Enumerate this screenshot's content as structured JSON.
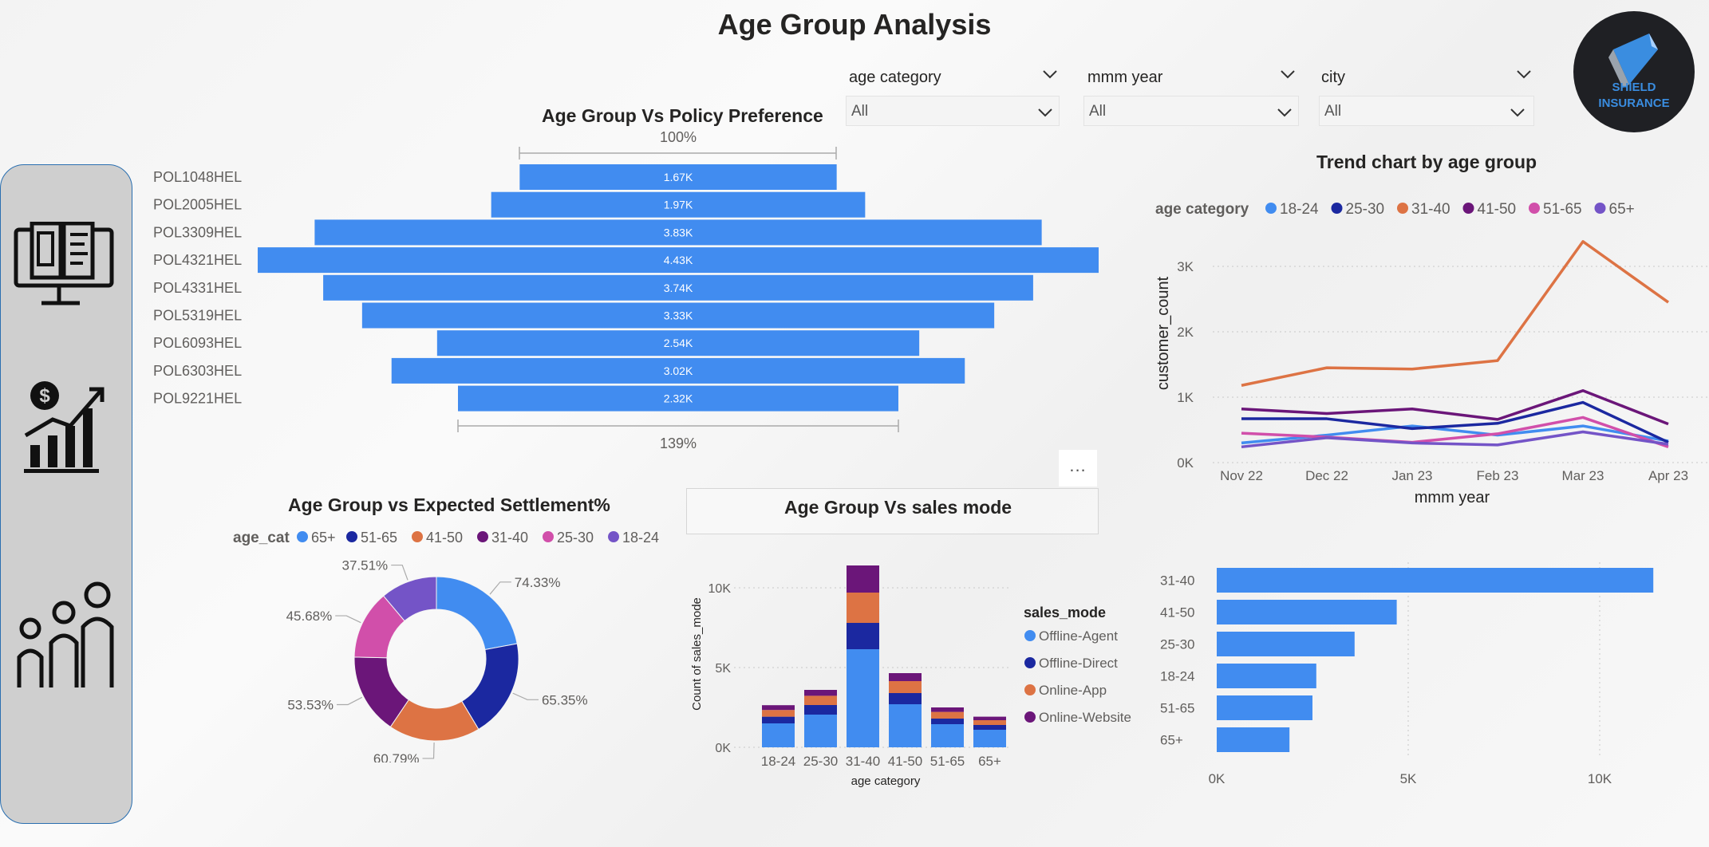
{
  "page": {
    "title": "Age Group Analysis"
  },
  "logo": {
    "line1": "SHIELD",
    "line2": "INSURANCE"
  },
  "sidebar": {
    "icons": [
      "computer-document-icon",
      "money-growth-chart-icon",
      "family-icon"
    ]
  },
  "slicers": [
    {
      "label": "age category",
      "value": "All"
    },
    {
      "label": "mmm year",
      "value": "All"
    },
    {
      "label": "city",
      "value": "All"
    }
  ],
  "more_options": "...",
  "colors": {
    "blue": "#418CF0",
    "navy": "#1B28A0",
    "orange": "#DD7344",
    "purple": "#6B1679",
    "pink": "#D14FAA",
    "violet": "#7454C7",
    "axis_text": "#605E5C"
  },
  "chart_data": [
    {
      "id": "policy",
      "type": "bar",
      "orientation": "horizontal-funnel",
      "title": "Age Group Vs Policy Preference",
      "top_label": "100%",
      "bottom_label": "139%",
      "categories": [
        "POL1048HEL",
        "POL2005HEL",
        "POL3309HEL",
        "POL4321HEL",
        "POL4331HEL",
        "POL5319HEL",
        "POL6093HEL",
        "POL6303HEL",
        "POL9221HEL"
      ],
      "values": [
        1670,
        1970,
        3830,
        4430,
        3740,
        3330,
        2540,
        3020,
        2320
      ],
      "labels": [
        "1.67K",
        "1.97K",
        "3.83K",
        "4.43K",
        "3.74K",
        "3.33K",
        "2.54K",
        "3.02K",
        "2.32K"
      ]
    },
    {
      "id": "trend",
      "type": "line",
      "title": "Trend chart by age group",
      "legend_title": "age category",
      "xlabel": "mmm year",
      "ylabel": "customer_count",
      "x": [
        "Nov 22",
        "Dec 22",
        "Jan 23",
        "Feb 23",
        "Mar 23",
        "Apr 23"
      ],
      "yticks": [
        "0K",
        "1K",
        "2K",
        "3K"
      ],
      "ylim": [
        0,
        3500
      ],
      "series": [
        {
          "name": "18-24",
          "color": "#418CF0",
          "values": [
            300,
            420,
            560,
            420,
            560,
            330
          ]
        },
        {
          "name": "25-30",
          "color": "#1B28A0",
          "values": [
            670,
            670,
            520,
            600,
            920,
            310
          ]
        },
        {
          "name": "31-40",
          "color": "#DD7344",
          "values": [
            1180,
            1450,
            1430,
            1560,
            3380,
            2450
          ]
        },
        {
          "name": "41-50",
          "color": "#6B1679",
          "values": [
            820,
            750,
            820,
            660,
            1100,
            590
          ]
        },
        {
          "name": "51-65",
          "color": "#D14FAA",
          "values": [
            450,
            390,
            310,
            440,
            690,
            240
          ]
        },
        {
          "name": "65+",
          "color": "#7454C7",
          "values": [
            240,
            380,
            300,
            270,
            470,
            280
          ]
        }
      ]
    },
    {
      "id": "settlement",
      "type": "pie",
      "variant": "donut",
      "title": "Age Group vs Expected Settlement%",
      "legend_title": "age_cat",
      "slices": [
        {
          "name": "65+",
          "value": 74.33,
          "label": "74.33%",
          "color": "#418CF0"
        },
        {
          "name": "51-65",
          "value": 65.35,
          "label": "65.35%",
          "color": "#1B28A0"
        },
        {
          "name": "41-50",
          "value": 60.79,
          "label": "60.79%",
          "color": "#DD7344"
        },
        {
          "name": "31-40",
          "value": 53.53,
          "label": "53.53%",
          "color": "#6B1679"
        },
        {
          "name": "25-30",
          "value": 45.68,
          "label": "45.68%",
          "color": "#D14FAA"
        },
        {
          "name": "18-24",
          "value": 37.51,
          "label": "37.51%",
          "color": "#7454C7"
        }
      ]
    },
    {
      "id": "sales",
      "type": "bar",
      "variant": "stacked",
      "title": "Age Group Vs sales mode",
      "legend_title": "sales_mode",
      "xlabel": "age category",
      "ylabel": "Count of sales_mode",
      "categories": [
        "18-24",
        "25-30",
        "31-40",
        "41-50",
        "51-65",
        "65+"
      ],
      "yticks": [
        "0K",
        "5K",
        "10K"
      ],
      "ylim": [
        0,
        11500
      ],
      "series": [
        {
          "name": "Offline-Agent",
          "color": "#418CF0",
          "values": [
            1500,
            2050,
            6150,
            2700,
            1450,
            1100
          ]
        },
        {
          "name": "Offline-Direct",
          "color": "#1B28A0",
          "values": [
            420,
            600,
            1650,
            700,
            350,
            300
          ]
        },
        {
          "name": "Online-App",
          "color": "#DD7344",
          "values": [
            420,
            580,
            1900,
            750,
            420,
            300
          ]
        },
        {
          "name": "Online-Website",
          "color": "#6B1679",
          "values": [
            300,
            370,
            1700,
            500,
            280,
            220
          ]
        }
      ]
    },
    {
      "id": "count",
      "type": "bar",
      "orientation": "horizontal",
      "categories": [
        "31-40",
        "41-50",
        "25-30",
        "18-24",
        "51-65",
        "65+"
      ],
      "values": [
        11400,
        4700,
        3600,
        2600,
        2500,
        1900
      ],
      "xticks": [
        "0K",
        "5K",
        "10K"
      ],
      "xlim": [
        0,
        12000
      ]
    }
  ]
}
